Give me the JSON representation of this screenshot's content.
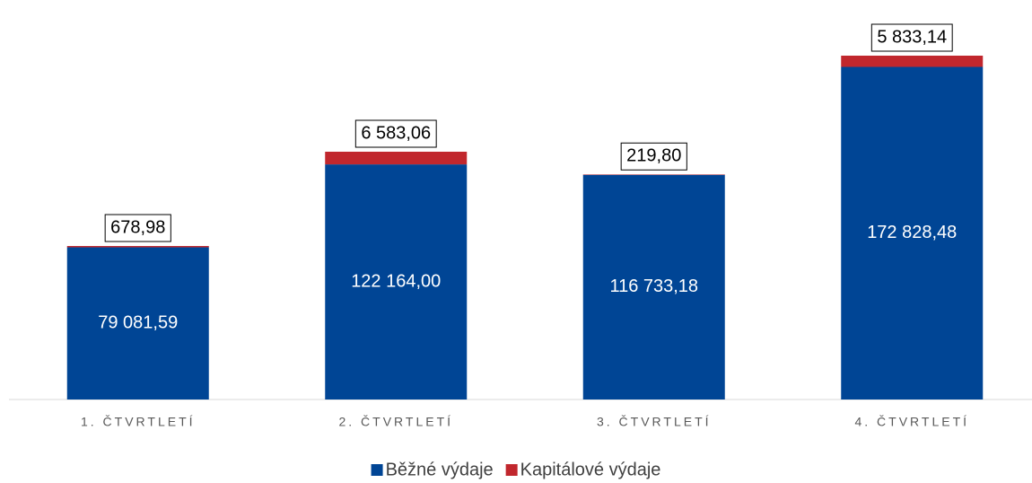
{
  "chart_data": {
    "type": "bar",
    "stacked": true,
    "categories": [
      "1. ČTVRTLETÍ",
      "2. ČTVRTLETÍ",
      "3. ČTVRTLETÍ",
      "4. ČTVRTLETÍ"
    ],
    "series": [
      {
        "name": "Běžné výdaje",
        "color": "#004595",
        "values": [
          79081.59,
          122164.0,
          116733.18,
          172828.48
        ],
        "value_labels": [
          "79 081,59",
          "122 164,00",
          "116 733,18",
          "172 828,48"
        ]
      },
      {
        "name": "Kapitálové výdaje",
        "color": "#c1272d",
        "values": [
          678.98,
          6583.06,
          219.8,
          5833.14
        ],
        "value_labels": [
          "678,98",
          "6 583,06",
          "219,80",
          "5 833,14"
        ]
      }
    ]
  }
}
